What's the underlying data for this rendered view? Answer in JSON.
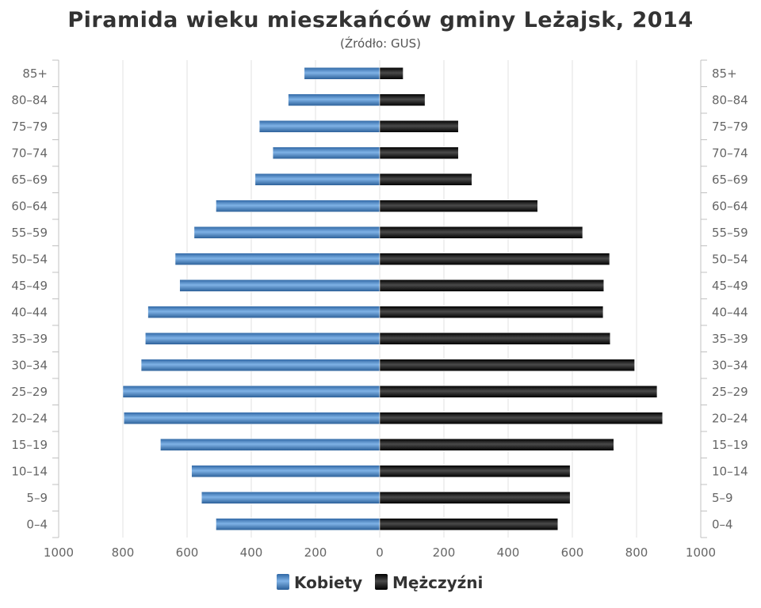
{
  "chart_data": {
    "type": "bar",
    "orientation": "horizontal-population-pyramid",
    "title": "Piramida wieku mieszkańców gminy Leżajsk, 2014",
    "subtitle": "(Źródło: GUS)",
    "categories": [
      "85+",
      "80–84",
      "75–79",
      "70–74",
      "65–69",
      "60–64",
      "55–59",
      "50–54",
      "45–49",
      "40–44",
      "35–39",
      "30–34",
      "25–29",
      "20–24",
      "15–19",
      "10–14",
      "5–9",
      "0–4"
    ],
    "series": [
      {
        "name": "Kobiety",
        "color": "#4a86c5",
        "values": [
          235,
          285,
          375,
          333,
          388,
          510,
          578,
          637,
          623,
          722,
          730,
          743,
          800,
          797,
          683,
          586,
          555,
          510
        ]
      },
      {
        "name": "Mężczyźni",
        "color": "#1a1a1a",
        "values": [
          73,
          141,
          245,
          245,
          287,
          492,
          632,
          716,
          698,
          696,
          718,
          794,
          864,
          881,
          729,
          593,
          593,
          555
        ]
      }
    ],
    "x_ticks": [
      "1000",
      "800",
      "600",
      "400",
      "200",
      "0",
      "200",
      "400",
      "600",
      "800",
      "1000"
    ],
    "xlim": [
      -1000,
      1000
    ],
    "grid": true,
    "legend_position": "bottom-center"
  }
}
